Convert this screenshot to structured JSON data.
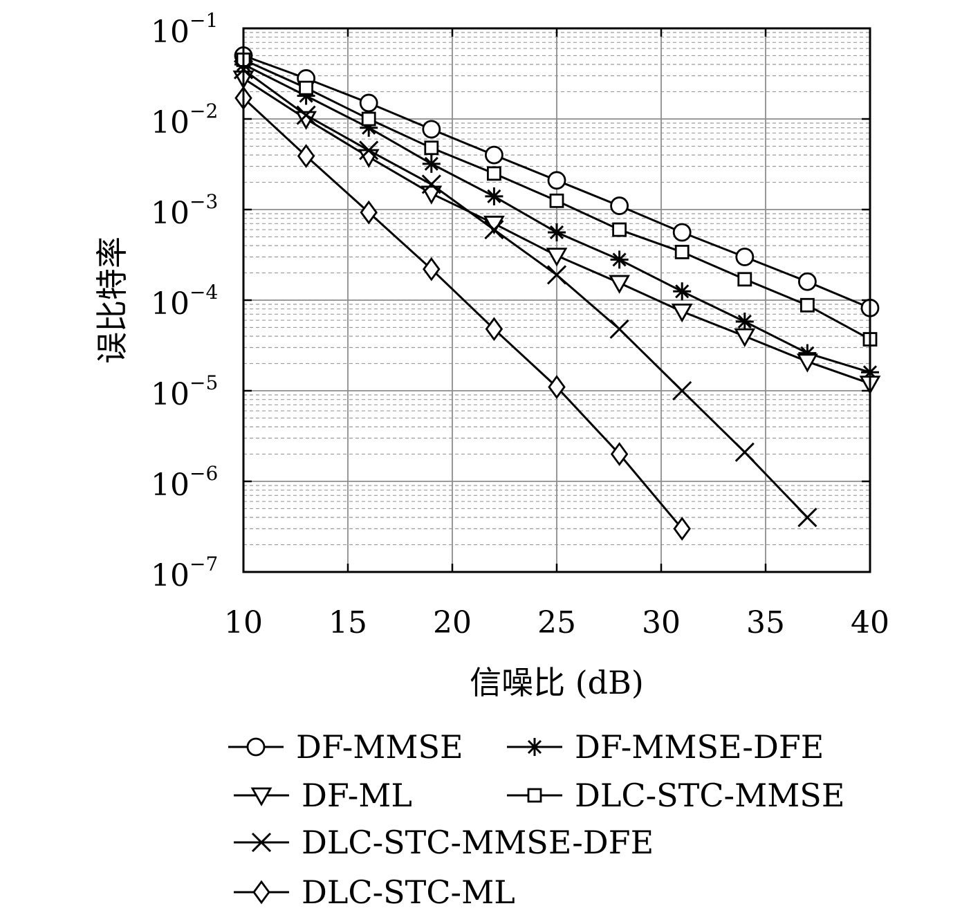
{
  "chart_data": {
    "type": "line",
    "xlabel": "信噪比 (dB)",
    "ylabel": "误比特率",
    "xlim": [
      10,
      40
    ],
    "ylim": [
      1e-07,
      0.1
    ],
    "yscale": "log",
    "grid": true,
    "minor_grid": true,
    "x_ticks": [
      10,
      15,
      20,
      25,
      30,
      35,
      40
    ],
    "x_tick_labels": [
      "10",
      "15",
      "20",
      "25",
      "30",
      "35",
      "40"
    ],
    "y_ticks": [
      0.1,
      0.01,
      0.001,
      0.0001,
      1e-05,
      1e-06,
      1e-07
    ],
    "y_tick_labels": [
      {
        "base": "10",
        "exp": "−1"
      },
      {
        "base": "10",
        "exp": "−2"
      },
      {
        "base": "10",
        "exp": "−3"
      },
      {
        "base": "10",
        "exp": "−4"
      },
      {
        "base": "10",
        "exp": "−5"
      },
      {
        "base": "10",
        "exp": "−6"
      },
      {
        "base": "10",
        "exp": "−7"
      }
    ],
    "legend_position": "bottom",
    "series": [
      {
        "name": "DF-MMSE",
        "marker": "circle",
        "x": [
          10,
          13,
          16,
          19,
          22,
          25,
          28,
          31,
          34,
          37,
          40
        ],
        "y": [
          0.05,
          0.028,
          0.015,
          0.0077,
          0.004,
          0.0021,
          0.0011,
          0.00056,
          0.0003,
          0.00016,
          8.2e-05
        ]
      },
      {
        "name": "DF-MMSE-DFE",
        "marker": "asterisk",
        "x": [
          10,
          13,
          16,
          19,
          22,
          25,
          28,
          31,
          34,
          37,
          40
        ],
        "y": [
          0.04,
          0.018,
          0.008,
          0.0032,
          0.0014,
          0.00056,
          0.00028,
          0.000125,
          5.8e-05,
          2.6e-05,
          1.6e-05
        ]
      },
      {
        "name": "DF-ML",
        "marker": "triangle-down",
        "x": [
          10,
          13,
          16,
          19,
          22,
          25,
          28,
          31,
          34,
          37,
          40
        ],
        "y": [
          0.028,
          0.01,
          0.0038,
          0.0015,
          0.0007,
          0.00031,
          0.000155,
          7.5e-05,
          4e-05,
          2.1e-05,
          1.2e-05
        ]
      },
      {
        "name": "DLC-STC-MMSE",
        "marker": "square",
        "x": [
          10,
          13,
          16,
          19,
          22,
          25,
          28,
          31,
          34,
          37,
          40
        ],
        "y": [
          0.045,
          0.022,
          0.01,
          0.0048,
          0.0025,
          0.00125,
          0.0006,
          0.00034,
          0.00017,
          8.8e-05,
          3.7e-05
        ]
      },
      {
        "name": "DLC-STC-MMSE-DFE",
        "marker": "cross",
        "x": [
          10,
          13,
          16,
          19,
          22,
          25,
          28,
          31,
          34,
          37
        ],
        "y": [
          0.035,
          0.011,
          0.0045,
          0.0019,
          0.0006,
          0.00019,
          4.8e-05,
          1e-05,
          2.1e-06,
          4e-07
        ]
      },
      {
        "name": "DLC-STC-ML",
        "marker": "diamond",
        "x": [
          10,
          13,
          16,
          19,
          22,
          25,
          28,
          31
        ],
        "y": [
          0.017,
          0.0039,
          0.00093,
          0.00022,
          4.8e-05,
          1.1e-05,
          2e-06,
          3e-07
        ]
      }
    ]
  }
}
